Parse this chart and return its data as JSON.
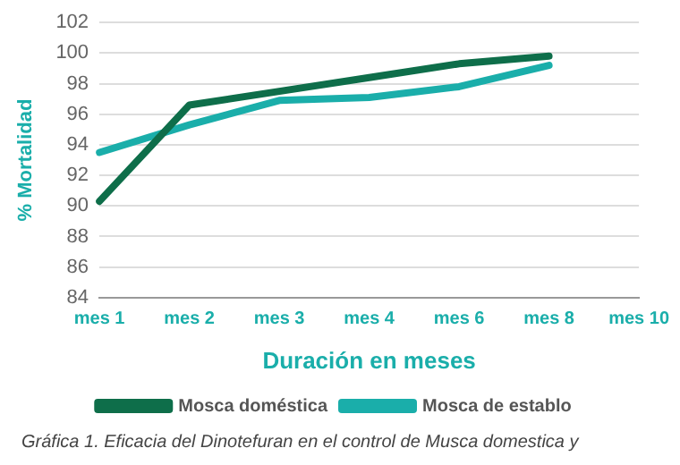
{
  "chart_data": {
    "type": "line",
    "xlabel": "Duración en meses",
    "ylabel": "% Mortalidad",
    "categories": [
      "mes 1",
      "mes 2",
      "mes 3",
      "mes 4",
      "mes 6",
      "mes 8",
      "mes 10"
    ],
    "series": [
      {
        "name": "Mosca doméstica",
        "color": "#0e6e4a",
        "values": [
          90.3,
          96.6,
          97.5,
          98.4,
          99.3,
          99.8,
          null
        ]
      },
      {
        "name": "Mosca de establo",
        "color": "#1aaeaa",
        "values": [
          93.5,
          95.3,
          96.9,
          97.1,
          97.8,
          99.2,
          null
        ]
      }
    ],
    "ylim": [
      84,
      102
    ],
    "yticks": [
      84,
      86,
      88,
      90,
      92,
      94,
      96,
      98,
      100,
      102
    ],
    "grid": "y",
    "legend": "bottom",
    "marker": "none",
    "line_style": "solid",
    "annotations": [
      "Gráfica 1.  Eficacia del Dinotefuran en el control de Musca domestica y"
    ]
  }
}
